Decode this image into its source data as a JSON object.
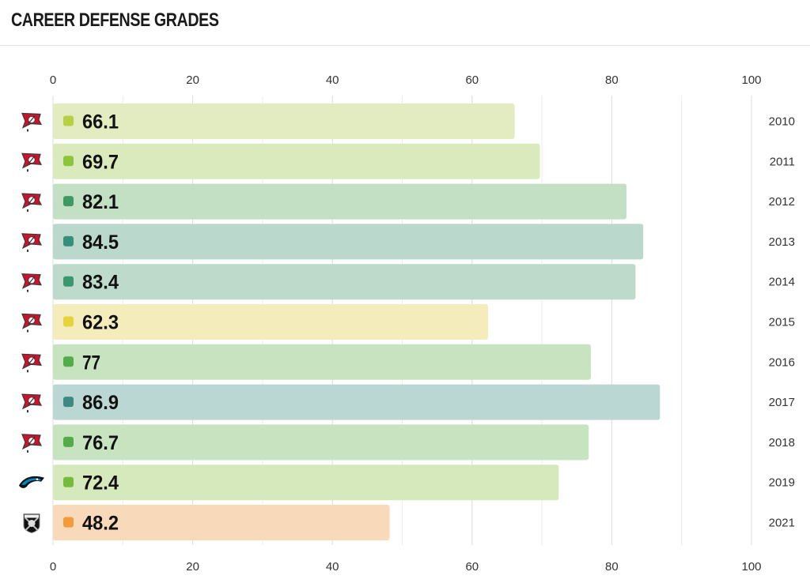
{
  "header": {
    "title": "CAREER DEFENSE GRADES"
  },
  "chart_data": {
    "type": "bar",
    "orientation": "horizontal",
    "title": "CAREER DEFENSE GRADES",
    "xlabel": "",
    "ylabel": "",
    "xlim": [
      0,
      100
    ],
    "x_ticks": [
      0,
      20,
      40,
      60,
      80,
      100
    ],
    "grid": true,
    "categories": [
      "2010",
      "2011",
      "2012",
      "2013",
      "2014",
      "2015",
      "2016",
      "2017",
      "2018",
      "2019",
      "2021"
    ],
    "values": [
      66.1,
      69.7,
      82.1,
      84.5,
      83.4,
      62.3,
      77,
      86.9,
      76.7,
      72.4,
      48.2
    ],
    "teams": [
      "buccaneers-flag-icon",
      "buccaneers-flag-icon",
      "buccaneers-flag-icon",
      "buccaneers-flag-icon",
      "buccaneers-flag-icon",
      "buccaneers-flag-icon",
      "buccaneers-flag-icon",
      "buccaneers-flag-icon",
      "buccaneers-flag-icon",
      "panthers-logo-icon",
      "raiders-logo-icon"
    ],
    "bar_colors": [
      "#e3ecc1",
      "#dbeabd",
      "#c3dfc4",
      "#bad9cc",
      "#bddacb",
      "#f4edbb",
      "#c7e3bf",
      "#bbd7d3",
      "#c7e3bf",
      "#d5e9bc",
      "#f8dabb"
    ],
    "dot_colors": [
      "#b6cf43",
      "#8cc43c",
      "#3e9a62",
      "#35907a",
      "#3a976e",
      "#e6d23a",
      "#52ad48",
      "#3d8a85",
      "#52ad48",
      "#76bc3b",
      "#f29b3a"
    ]
  }
}
